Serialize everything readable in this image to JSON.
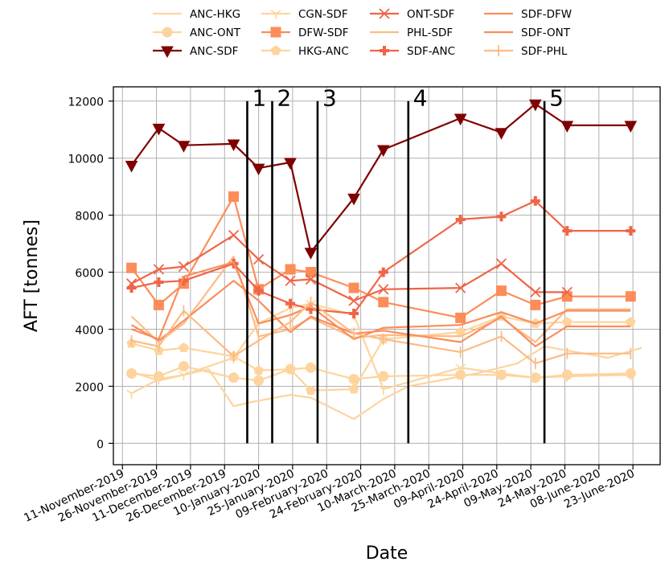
{
  "chart_data": {
    "type": "line",
    "xlabel": "Date",
    "ylabel": "AFT [tonnes]",
    "ylim": [
      -750,
      12500
    ],
    "xlim": [
      "2019-11-07",
      "2020-07-05"
    ],
    "grid": true,
    "legend_position": "top-center",
    "x_ticks": [
      {
        "date": "2019-11-11",
        "label": "11-November-2019"
      },
      {
        "date": "2019-11-26",
        "label": "26-November-2019"
      },
      {
        "date": "2019-12-11",
        "label": "11-December-2019"
      },
      {
        "date": "2019-12-26",
        "label": "26-December-2019"
      },
      {
        "date": "2020-01-10",
        "label": "10-January-2020"
      },
      {
        "date": "2020-01-25",
        "label": "25-January-2020"
      },
      {
        "date": "2020-02-09",
        "label": "09-February-2020"
      },
      {
        "date": "2020-02-24",
        "label": "24-February-2020"
      },
      {
        "date": "2020-03-10",
        "label": "10-March-2020"
      },
      {
        "date": "2020-03-25",
        "label": "25-March-2020"
      },
      {
        "date": "2020-04-09",
        "label": "09-April-2020"
      },
      {
        "date": "2020-04-24",
        "label": "24-April-2020"
      },
      {
        "date": "2020-05-09",
        "label": "09-May-2020"
      },
      {
        "date": "2020-05-24",
        "label": "24-May-2020"
      },
      {
        "date": "2020-06-08",
        "label": "08-June-2020"
      },
      {
        "date": "2020-06-23",
        "label": "23-June-2020"
      }
    ],
    "y_ticks": [
      {
        "value": 0,
        "label": "0"
      },
      {
        "value": 2000,
        "label": "2000"
      },
      {
        "value": 4000,
        "label": "4000"
      },
      {
        "value": 6000,
        "label": "6000"
      },
      {
        "value": 8000,
        "label": "8000"
      },
      {
        "value": 10000,
        "label": "10000"
      },
      {
        "value": 12000,
        "label": "12000"
      }
    ],
    "vlines": [
      {
        "date": "2020-01-05",
        "label": "1"
      },
      {
        "date": "2020-01-16",
        "label": "2"
      },
      {
        "date": "2020-02-05",
        "label": "3"
      },
      {
        "date": "2020-03-16",
        "label": "4"
      },
      {
        "date": "2020-05-15",
        "label": "5"
      }
    ],
    "series": [
      {
        "name": "ANC-HKG",
        "color": "#fdd49e",
        "marker": "none",
        "x": [
          "2019-11-15",
          "2019-11-27",
          "2019-12-19",
          "2019-12-30",
          "2020-01-07",
          "2020-01-24",
          "2020-02-02",
          "2020-02-21",
          "2020-03-05",
          "2020-03-16",
          "2020-04-15",
          "2020-05-03",
          "2020-05-15",
          "2020-06-12",
          "2020-06-27"
        ],
        "y": [
          2500,
          2200,
          2600,
          1300,
          1450,
          1700,
          1600,
          850,
          1550,
          2000,
          2450,
          2800,
          3400,
          3000,
          3350
        ]
      },
      {
        "name": "ANC-ONT",
        "color": "#fdd49e",
        "marker": "circle",
        "x": [
          "2019-11-15",
          "2019-11-27",
          "2019-12-08",
          "2019-12-30",
          "2020-01-10",
          "2020-01-24",
          "2020-02-02",
          "2020-02-21",
          "2020-03-05",
          "2020-04-08",
          "2020-04-26",
          "2020-05-11",
          "2020-05-25",
          "2020-06-22"
        ],
        "y": [
          2450,
          2350,
          2700,
          2300,
          2200,
          2600,
          2650,
          2250,
          2350,
          2400,
          2400,
          2300,
          2400,
          2450
        ]
      },
      {
        "name": "ANC-SDF",
        "color": "#7f0000",
        "marker": "triangle-down",
        "x": [
          "2019-11-15",
          "2019-11-27",
          "2019-12-08",
          "2019-12-30",
          "2020-01-10",
          "2020-01-24",
          "2020-02-02",
          "2020-02-21",
          "2020-03-05",
          "2020-04-08",
          "2020-04-26",
          "2020-05-11",
          "2020-05-25",
          "2020-06-22"
        ],
        "y": [
          9750,
          11050,
          10450,
          10500,
          9650,
          9850,
          6700,
          8600,
          10300,
          11400,
          10900,
          11900,
          11150,
          11150
        ]
      },
      {
        "name": "CGN-SDF",
        "color": "#fdd49e",
        "marker": "tri-down",
        "x": [
          "2019-11-15",
          "2019-11-27",
          "2019-12-08",
          "2019-12-30",
          "2020-01-10",
          "2020-01-24",
          "2020-02-02",
          "2020-02-21",
          "2020-03-05",
          "2020-04-08",
          "2020-04-26",
          "2020-05-11",
          "2020-05-25",
          "2020-06-22"
        ],
        "y": [
          1750,
          2250,
          2400,
          3000,
          4200,
          4750,
          4900,
          4500,
          1900,
          2650,
          2450,
          2300,
          2350,
          2400
        ]
      },
      {
        "name": "DFW-SDF",
        "color": "#fc8d59",
        "marker": "square",
        "x": [
          "2019-11-15",
          "2019-11-27",
          "2019-12-08",
          "2019-12-30",
          "2020-01-10",
          "2020-01-24",
          "2020-02-02",
          "2020-02-21",
          "2020-03-05",
          "2020-04-08",
          "2020-04-26",
          "2020-05-11",
          "2020-05-25",
          "2020-06-22"
        ],
        "y": [
          6150,
          4850,
          5600,
          8650,
          5400,
          6100,
          6000,
          5450,
          4950,
          4400,
          5350,
          4850,
          5150,
          5150
        ]
      },
      {
        "name": "HKG-ANC",
        "color": "#fdd49e",
        "marker": "pentagon",
        "x": [
          "2019-11-15",
          "2019-11-27",
          "2019-12-08",
          "2019-12-30",
          "2020-01-10",
          "2020-01-24",
          "2020-02-02",
          "2020-02-21",
          "2020-03-05",
          "2020-04-08",
          "2020-04-26",
          "2020-05-11",
          "2020-05-25",
          "2020-06-22"
        ],
        "y": [
          3500,
          3250,
          3350,
          3050,
          2550,
          2600,
          1850,
          1900,
          3650,
          3900,
          4450,
          4200,
          4250,
          4250
        ]
      },
      {
        "name": "ONT-SDF",
        "color": "#ef6548",
        "marker": "x",
        "x": [
          "2019-11-15",
          "2019-11-27",
          "2019-12-08",
          "2019-12-30",
          "2020-01-10",
          "2020-01-24",
          "2020-02-02",
          "2020-02-21",
          "2020-03-05",
          "2020-04-08",
          "2020-04-26",
          "2020-05-11",
          "2020-05-25"
        ],
        "y": [
          5600,
          6100,
          6200,
          7300,
          6450,
          5700,
          5750,
          5000,
          5400,
          5450,
          6300,
          5300,
          5300
        ]
      },
      {
        "name": "PHL-SDF",
        "color": "#fdbb84",
        "marker": "none",
        "x": [
          "2019-11-15",
          "2019-11-27",
          "2019-12-08",
          "2019-12-30",
          "2020-01-10",
          "2020-01-24",
          "2020-02-02",
          "2020-02-21",
          "2020-03-05",
          "2020-04-08",
          "2020-04-26",
          "2020-05-11",
          "2020-05-25",
          "2020-06-22"
        ],
        "y": [
          4450,
          3550,
          4200,
          6550,
          3750,
          4000,
          4400,
          3700,
          3800,
          3750,
          4400,
          3550,
          4700,
          4700
        ]
      },
      {
        "name": "SDF-ANC",
        "color": "#ef6548",
        "marker": "plus",
        "x": [
          "2019-11-15",
          "2019-11-27",
          "2019-12-08",
          "2019-12-30",
          "2020-01-10",
          "2020-01-24",
          "2020-02-02",
          "2020-02-21",
          "2020-03-05",
          "2020-04-08",
          "2020-04-26",
          "2020-05-11",
          "2020-05-25",
          "2020-06-22"
        ],
        "y": [
          5450,
          5650,
          5700,
          6300,
          5350,
          4900,
          4700,
          4550,
          6000,
          7850,
          7950,
          8500,
          7450,
          7450
        ]
      },
      {
        "name": "SDF-DFW",
        "color": "#fc8d59",
        "marker": "none",
        "x": [
          "2019-11-15",
          "2019-11-27",
          "2019-12-08",
          "2019-12-30",
          "2020-01-10",
          "2020-01-24",
          "2020-02-02",
          "2020-02-21",
          "2020-03-05",
          "2020-04-08",
          "2020-04-26",
          "2020-05-11",
          "2020-05-25",
          "2020-06-22"
        ],
        "y": [
          4000,
          3650,
          5850,
          6350,
          4200,
          4500,
          4800,
          3650,
          4050,
          4150,
          4600,
          4200,
          4650,
          4650
        ]
      },
      {
        "name": "SDF-ONT",
        "color": "#fc8d59",
        "marker": "none",
        "x": [
          "2019-11-15",
          "2019-11-27",
          "2019-12-08",
          "2019-12-30",
          "2020-01-10",
          "2020-01-24",
          "2020-02-02",
          "2020-02-21",
          "2020-03-05",
          "2020-04-08",
          "2020-04-26",
          "2020-05-11",
          "2020-05-25",
          "2020-06-22"
        ],
        "y": [
          4150,
          3600,
          4300,
          5700,
          5000,
          3900,
          4450,
          3850,
          3950,
          3550,
          4450,
          3400,
          4100,
          4100
        ]
      },
      {
        "name": "SDF-PHL",
        "color": "#fdbb84",
        "marker": "vline",
        "x": [
          "2019-11-15",
          "2019-11-27",
          "2019-12-08",
          "2019-12-30",
          "2020-01-10",
          "2020-01-24",
          "2020-02-02",
          "2020-02-21",
          "2020-03-05",
          "2020-04-08",
          "2020-04-26",
          "2020-05-11",
          "2020-05-25",
          "2020-06-22"
        ],
        "y": [
          3600,
          3400,
          4650,
          3050,
          3600,
          4250,
          4950,
          3850,
          3650,
          3200,
          3750,
          2800,
          3150,
          3150
        ]
      }
    ]
  }
}
